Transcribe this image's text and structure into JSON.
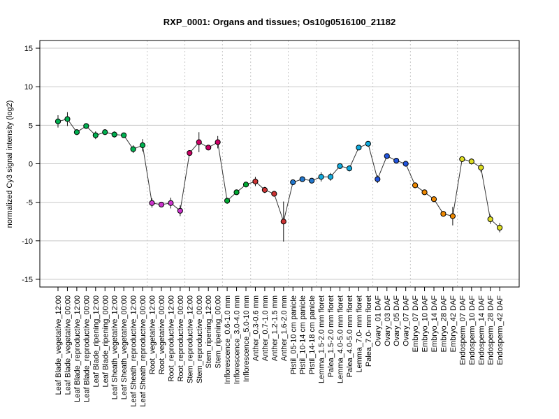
{
  "chart_data": {
    "type": "line",
    "title": "RXP_0001: Organs and tissues; Os10g0516100_21182",
    "ylabel": "normalized Cy3 signal intensity (log2)",
    "xlabel": "",
    "ylim": [
      -16,
      16
    ],
    "yticks": [
      -15,
      -10,
      -5,
      0,
      5,
      10,
      15
    ],
    "grid": true,
    "categories": [
      "Leaf Blade_vegetative_12:00",
      "Leaf Blade_vegetative_00:00",
      "Leaf Blade_reproductive_12:00",
      "Leaf Blade_reproductive_00:00",
      "Leaf Blade_ripening_12:00",
      "Leaf Blade_ripening_00:00",
      "Leaf Sheath_vegetative_12:00",
      "Leaf Sheath_vegetative_00:00",
      "Leaf Sheath_reproductive_12:00",
      "Leaf Sheath_reproductive_00:00",
      "Root_vegetative_12:00",
      "Root_vegetative_00:00",
      "Root_reproductive_12:00",
      "Root_reproductive_00:00",
      "Stem_reproductive_12:00",
      "Stem_reproductive_00:00",
      "Stem_ripening_12:00",
      "Stem_ripening_00:00",
      "Inflorescence_0.6-1.0 mm",
      "Inflorescence_3.0-4.0 mm",
      "Inflorescence_5.0-10 mm",
      "Anther_0.3-0.6 mm",
      "Anther_0.7-1.0 mm",
      "Anther_1.2-1.5 mm",
      "Anther_1.6-2.0 mm",
      "Pistil_05-10 cm panicle",
      "Pistil_10-14 cm panicle",
      "Pistil_14-18 cm panicle",
      "Lemma_1.5-2.0 mm floret",
      "Palea_1.5-2.0 mm floret",
      "Lemma_4.0-5.0 mm floret",
      "Palea_4.0-5.0 mm floret",
      "Lemma_7.0- mm floret",
      "Palea_7.0- mm floret",
      "Ovary_01 DAF",
      "Ovary_03 DAF",
      "Ovary_05 DAF",
      "Ovary_07 DAF",
      "Embryo_07 DAF",
      "Embryo_10 DAF",
      "Embryo_14 DAF",
      "Embryo_28 DAF",
      "Embryo_42 DAF",
      "Endosperm_07 DAF",
      "Endosperm_10 DAF",
      "Endosperm_14 DAF",
      "Endosperm_28 DAF",
      "Endosperm_42 DAF"
    ],
    "series": [
      {
        "values": [
          5.5,
          5.8,
          4.1,
          4.9,
          3.7,
          4.1,
          3.8,
          3.7,
          1.9,
          2.4,
          -5.1,
          -5.3,
          -5.1,
          -6.1,
          1.4,
          2.8,
          2.1,
          2.8,
          -4.8,
          -3.7,
          -2.7,
          -2.3,
          -3.4,
          -3.9,
          -7.5,
          -2.4,
          -2.0,
          -2.2,
          -1.7,
          -1.7,
          -0.3,
          -0.6,
          2.1,
          2.6,
          -2.0,
          1.0,
          0.4,
          0.0,
          -2.8,
          -3.7,
          -4.6,
          -6.5,
          -6.8,
          0.6,
          0.3,
          -0.5,
          -7.2,
          -8.3
        ],
        "errors": [
          0.8,
          0.9,
          0.3,
          0.3,
          0.5,
          0.3,
          0.4,
          0.2,
          0.5,
          0.8,
          0.6,
          0.3,
          0.7,
          0.7,
          0.3,
          1.3,
          0.3,
          0.8,
          0.4,
          0.2,
          0.3,
          0.6,
          0.4,
          0.3,
          2.6,
          0.2,
          0.3,
          0.2,
          0.6,
          0.5,
          0.3,
          0.4,
          0.2,
          0.2,
          0.5,
          0.3,
          0.2,
          0.2,
          0.2,
          0.2,
          0.2,
          0.2,
          1.2,
          0.2,
          0.4,
          0.6,
          0.6,
          0.6
        ]
      }
    ],
    "group_colors": [
      "#00b050",
      "#00b050",
      "#00b050",
      "#00b050",
      "#00b050",
      "#00b050",
      "#00b050",
      "#00b050",
      "#00b050",
      "#00b050",
      "#cc33cc",
      "#cc33cc",
      "#cc33cc",
      "#cc33cc",
      "#cc0066",
      "#cc0066",
      "#cc0066",
      "#cc0066",
      "#00aa33",
      "#00aa33",
      "#00aa33",
      "#cc3333",
      "#cc3333",
      "#cc3333",
      "#cc3333",
      "#2277cc",
      "#2277cc",
      "#2277cc",
      "#11aadd",
      "#11aadd",
      "#11aadd",
      "#11aadd",
      "#11aadd",
      "#11aadd",
      "#2255dd",
      "#2255dd",
      "#2255dd",
      "#2255dd",
      "#ee8800",
      "#ee8800",
      "#ee8800",
      "#ee8800",
      "#ee8800",
      "#dddd22",
      "#dddd22",
      "#dddd22",
      "#dddd22",
      "#dddd22"
    ]
  }
}
